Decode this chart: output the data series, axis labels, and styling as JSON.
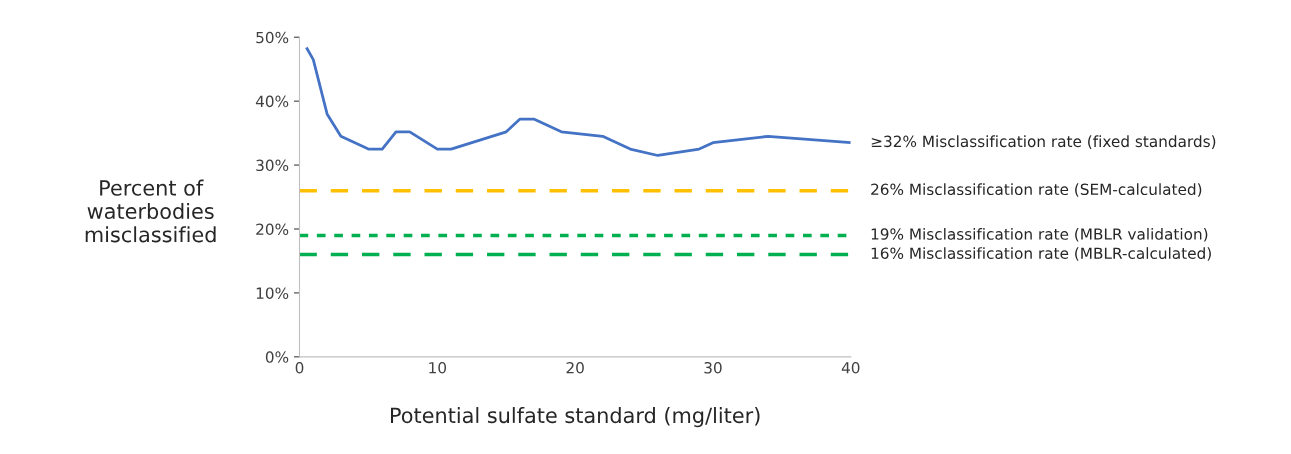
{
  "chart_data": {
    "type": "line",
    "xlabel": "Potential sulfate standard (mg/liter)",
    "ylabel": "Percent of\nwaterbodies\nmisclassified",
    "series": [
      {
        "color": "#4472c4",
        "x": [
          0.5,
          1,
          2,
          3,
          5,
          6,
          7,
          8,
          10,
          11,
          15,
          16,
          17,
          19,
          22,
          24,
          26,
          29,
          30,
          34,
          40
        ],
        "values": [
          48.4,
          46.5,
          38,
          34.5,
          32.5,
          32.5,
          35.2,
          35.2,
          32.5,
          32.5,
          35.2,
          37.2,
          37.2,
          35.2,
          34.5,
          32.5,
          31.5,
          32.5,
          33.5,
          34.5,
          33.5
        ]
      }
    ],
    "xlim": [
      0,
      40
    ],
    "xticks": [
      0,
      10,
      20,
      30,
      40
    ],
    "ylim": [
      0,
      50
    ],
    "yticks": [
      {
        "value": 0,
        "label": "0%"
      },
      {
        "value": 10,
        "label": "10%"
      },
      {
        "value": 20,
        "label": "20%"
      },
      {
        "value": 30,
        "label": "30%"
      },
      {
        "value": 40,
        "label": "40%"
      },
      {
        "value": 50,
        "label": "50%"
      }
    ],
    "ref_lines": [
      {
        "axis": "y",
        "value": 26,
        "label": "26% Misclassification rate (SEM-calculated)",
        "color": "#ffc000",
        "line_style": "dashed"
      },
      {
        "axis": "y",
        "value": 19,
        "label": "19% Misclassification rate (MBLR validation)",
        "color": "#00b050",
        "line_style": "dotted"
      },
      {
        "axis": "y",
        "value": 16,
        "label": "16% Misclassification rate (MBLR-calculated)",
        "color": "#00b050",
        "line_style": "dashed"
      }
    ],
    "annotations": [
      {
        "text": "≥32% Misclassification rate (fixed standards)",
        "x": 40,
        "y": 33.5
      }
    ],
    "grid": false,
    "marker": "none",
    "line_style": "solid"
  }
}
